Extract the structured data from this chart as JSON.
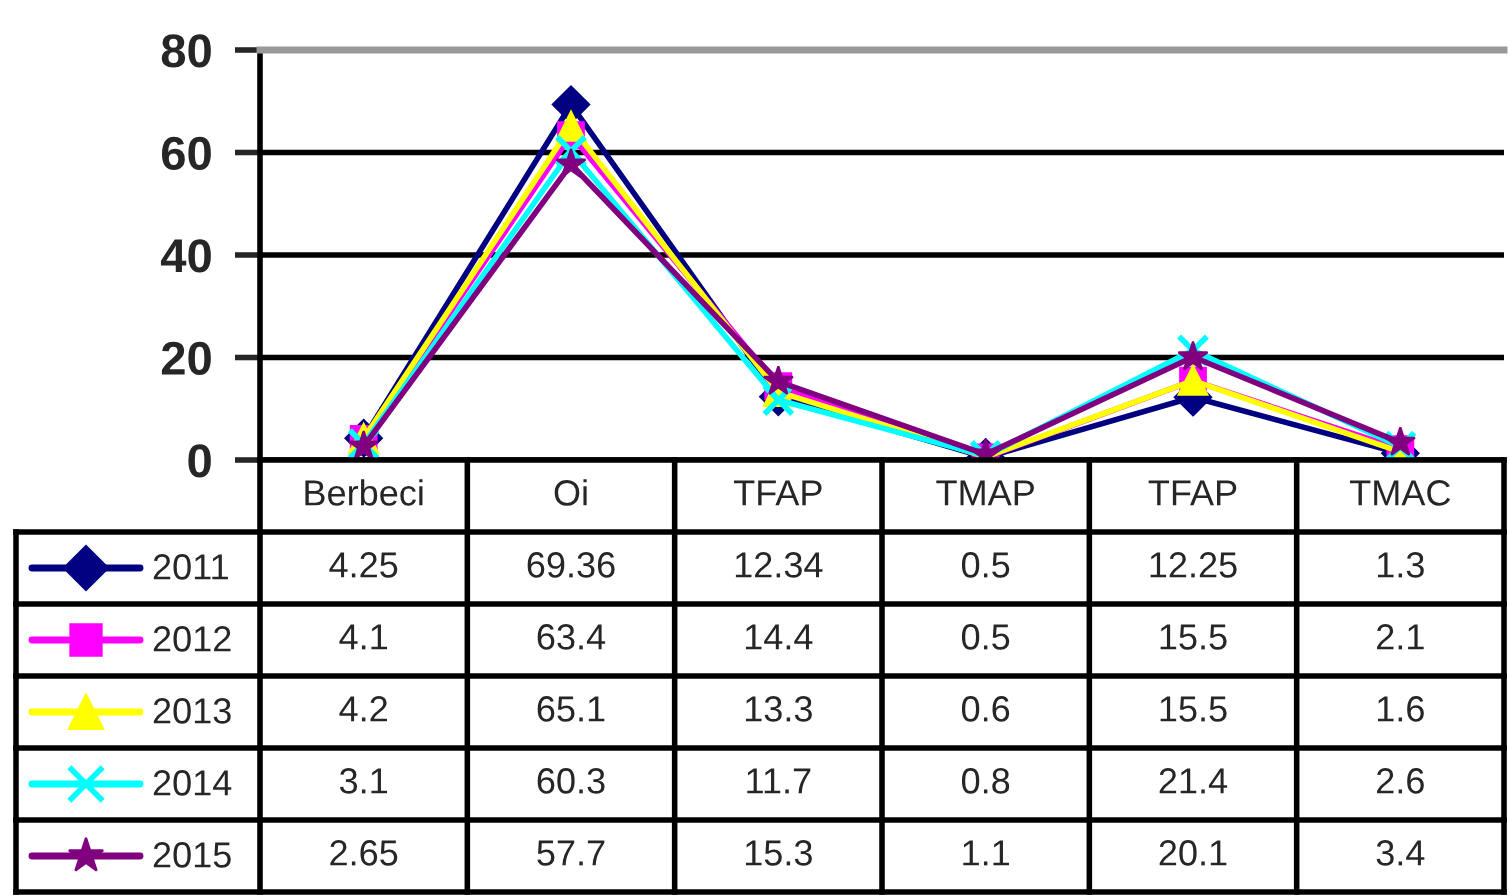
{
  "chart_data": {
    "type": "line",
    "categories": [
      "Berbeci",
      "Oi",
      "TFAP",
      "TMAP",
      "TFAP",
      "TMAC"
    ],
    "series": [
      {
        "name": "2011",
        "color": "#000080",
        "marker": "diamond",
        "values": [
          4.25,
          69.36,
          12.34,
          0.5,
          12.25,
          1.3
        ]
      },
      {
        "name": "2012",
        "color": "#ff00ff",
        "marker": "square",
        "values": [
          4.1,
          63.4,
          14.4,
          0.5,
          15.5,
          2.1
        ]
      },
      {
        "name": "2013",
        "color": "#ffff00",
        "marker": "triangle",
        "values": [
          4.2,
          65.1,
          13.3,
          0.6,
          15.5,
          1.6
        ]
      },
      {
        "name": "2014",
        "color": "#00ffff",
        "marker": "cross",
        "values": [
          3.1,
          60.3,
          11.7,
          0.8,
          21.4,
          2.6
        ]
      },
      {
        "name": "2015",
        "color": "#800080",
        "marker": "star",
        "values": [
          2.65,
          57.7,
          15.3,
          1.1,
          20.1,
          3.4
        ]
      }
    ],
    "ylim": [
      0,
      80
    ],
    "yticks": [
      0,
      20,
      40,
      60,
      80
    ],
    "grid": "y",
    "legend": "bottom",
    "data_labels": true
  }
}
